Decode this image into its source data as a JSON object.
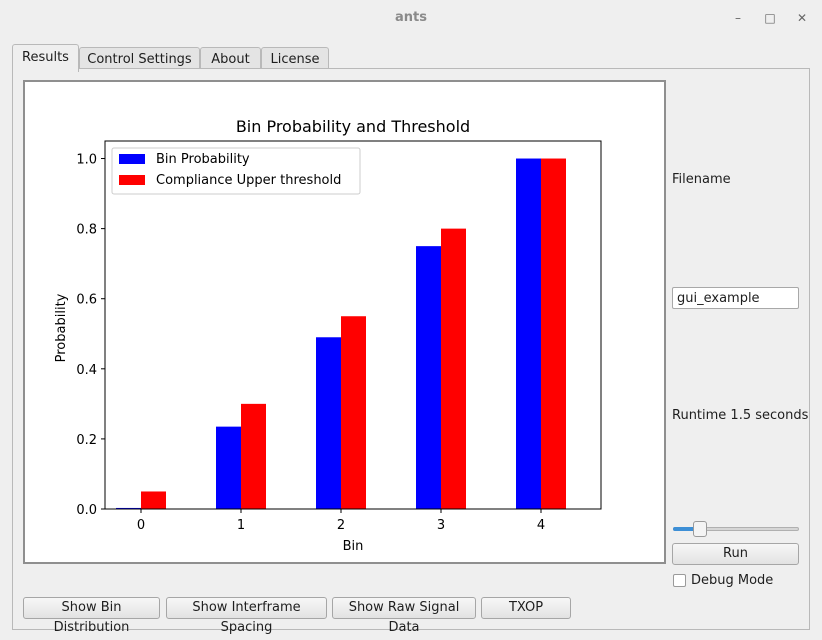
{
  "window": {
    "title": "ants",
    "minimize_glyph": "–",
    "maximize_glyph": "□",
    "close_glyph": "✕"
  },
  "tabs": [
    {
      "label": "Results",
      "active": true
    },
    {
      "label": "Control Settings",
      "active": false
    },
    {
      "label": "About",
      "active": false
    },
    {
      "label": "License",
      "active": false
    }
  ],
  "side": {
    "filename_label": "Filename",
    "filename_value": "gui_example",
    "runtime_label": "Runtime 1.5 seconds",
    "slider_value": 0.18,
    "run_label": "Run",
    "debug_label": "Debug Mode",
    "debug_checked": false
  },
  "bottom_buttons": [
    {
      "label": "Show Bin Distribution"
    },
    {
      "label": "Show Interframe Spacing"
    },
    {
      "label": "Show Raw Signal Data"
    },
    {
      "label": "TXOP"
    }
  ],
  "colors": {
    "series1": "#0000ff",
    "series2": "#ff0000",
    "slider_fill": "#3d8fd6"
  },
  "chart_data": {
    "type": "bar",
    "title": "Bin Probability and Threshold",
    "xlabel": "Bin",
    "ylabel": "Probability",
    "categories": [
      "0",
      "1",
      "2",
      "3",
      "4"
    ],
    "series": [
      {
        "name": "Bin Probability",
        "values": [
          0.003,
          0.235,
          0.49,
          0.75,
          1.0
        ],
        "color": "#0000ff"
      },
      {
        "name": "Compliance Upper threshold",
        "values": [
          0.05,
          0.3,
          0.55,
          0.8,
          1.0
        ],
        "color": "#ff0000"
      }
    ],
    "ylim": [
      0,
      1.05
    ],
    "yticks": [
      "0.0",
      "0.2",
      "0.4",
      "0.6",
      "0.8",
      "1.0"
    ],
    "legend": "top-left",
    "grid": false
  }
}
